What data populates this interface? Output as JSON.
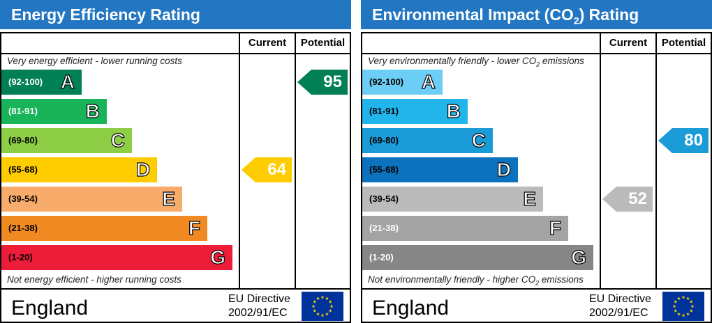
{
  "energy": {
    "title": "Energy Efficiency Rating",
    "current_label": "Current",
    "potential_label": "Potential",
    "top_desc": "Very energy efficient - lower running costs",
    "bottom_desc": "Not energy efficient - higher running costs",
    "bands": [
      {
        "range": "(92-100)",
        "letter": "A",
        "color": "#008054",
        "text": "#ffffff"
      },
      {
        "range": "(81-91)",
        "letter": "B",
        "color": "#19b459",
        "text": "#ffffff"
      },
      {
        "range": "(69-80)",
        "letter": "C",
        "color": "#8dce46",
        "text": "#000000"
      },
      {
        "range": "(55-68)",
        "letter": "D",
        "color": "#ffcc00",
        "text": "#000000"
      },
      {
        "range": "(39-54)",
        "letter": "E",
        "color": "#f7ac6b",
        "text": "#000000"
      },
      {
        "range": "(21-38)",
        "letter": "F",
        "color": "#f18a23",
        "text": "#000000"
      },
      {
        "range": "(1-20)",
        "letter": "G",
        "color": "#ed1c39",
        "text": "#000000"
      }
    ],
    "current": {
      "value": "64",
      "band": 3,
      "color": "#ffcc00"
    },
    "potential": {
      "value": "95",
      "band": 0,
      "color": "#008054"
    },
    "country": "England",
    "directive_line1": "EU Directive",
    "directive_line2": "2002/91/EC"
  },
  "environment": {
    "title_pre": "Environmental Impact (CO",
    "title_sub": "2",
    "title_post": ") Rating",
    "current_label": "Current",
    "potential_label": "Potential",
    "top_desc_pre": "Very environmentally friendly - lower CO",
    "top_desc_sub": "2",
    "top_desc_post": " emissions",
    "bottom_desc_pre": "Not environmentally friendly - higher CO",
    "bottom_desc_sub": "2",
    "bottom_desc_post": " emissions",
    "bands": [
      {
        "range": "(92-100)",
        "letter": "A",
        "color": "#6ccef5",
        "text": "#000000"
      },
      {
        "range": "(81-91)",
        "letter": "B",
        "color": "#22b5ec",
        "text": "#000000"
      },
      {
        "range": "(69-80)",
        "letter": "C",
        "color": "#1b9bd7",
        "text": "#000000"
      },
      {
        "range": "(55-68)",
        "letter": "D",
        "color": "#0d72bd",
        "text": "#000000"
      },
      {
        "range": "(39-54)",
        "letter": "E",
        "color": "#bbbbbb",
        "text": "#000000"
      },
      {
        "range": "(21-38)",
        "letter": "F",
        "color": "#a3a3a3",
        "text": "#ffffff"
      },
      {
        "range": "(1-20)",
        "letter": "G",
        "color": "#868686",
        "text": "#ffffff"
      }
    ],
    "current": {
      "value": "52",
      "band": 4,
      "color": "#bbbbbb"
    },
    "potential": {
      "value": "80",
      "band": 2,
      "color": "#1b9bd7"
    },
    "country": "England",
    "directive_line1": "EU Directive",
    "directive_line2": "2002/91/EC"
  },
  "icons": {
    "flag": "eu-flag-icon"
  }
}
